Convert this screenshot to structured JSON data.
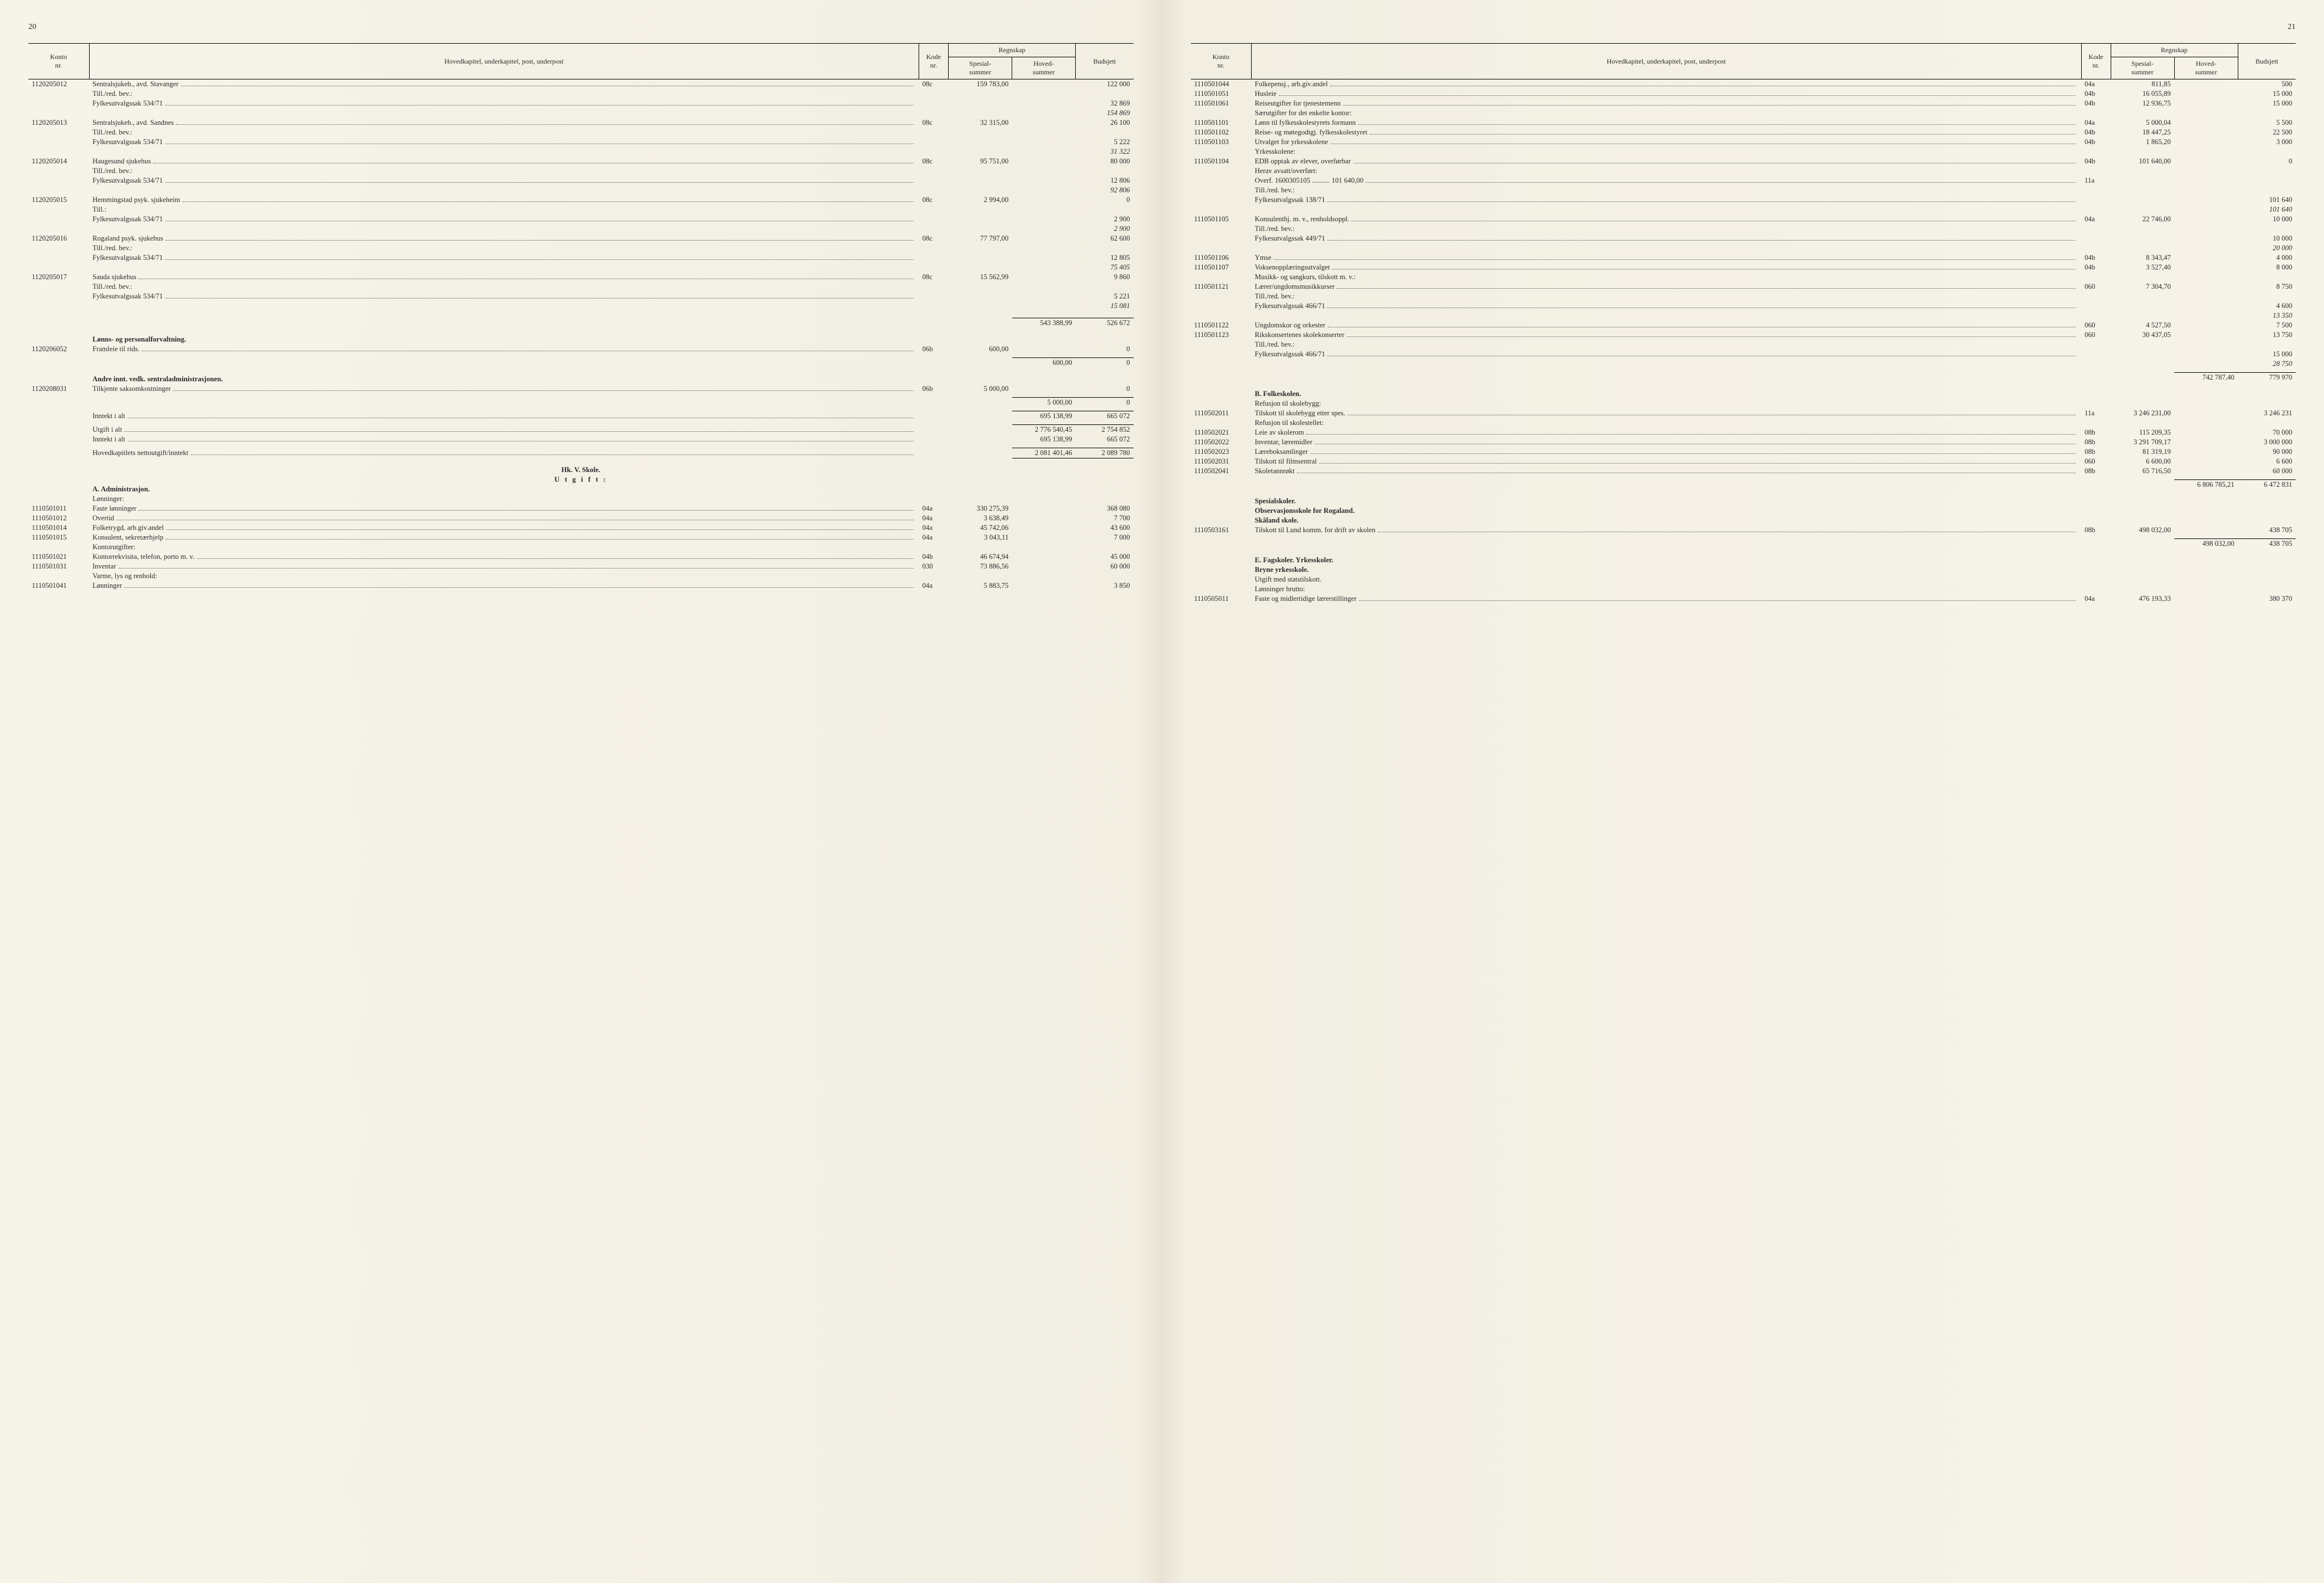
{
  "page_num_left": "20",
  "page_num_right": "21",
  "headers": {
    "konto": "Konto\nnr.",
    "hoved": "Hovedkapitel, underkapitel, post, underpost",
    "kode": "Kode\nnr.",
    "regnskap": "Regnskap",
    "spesial": "Spesial-\nsummer",
    "hovedsum": "Hoved-\nsummer",
    "budsjett": "Budsjett"
  },
  "left": [
    {
      "k": "1120205012",
      "d": "Sentralsjukeh., avd. Stavanger",
      "c": "08c",
      "s": "159 783,00",
      "b": "122 000"
    },
    {
      "k": "",
      "d": "Till./red. bev.:",
      "c": "",
      "s": "",
      "b": ""
    },
    {
      "k": "",
      "d": "Fylkesutvalgssak 534/71",
      "c": "",
      "s": "",
      "b": "32 869"
    },
    {
      "k": "",
      "d": "",
      "c": "",
      "s": "",
      "b": "154 869",
      "it": true
    },
    {
      "k": "1120205013",
      "d": "Sentralsjukeh., avd. Sandnes",
      "c": "08c",
      "s": "32 315,00",
      "b": "26 100"
    },
    {
      "k": "",
      "d": "Till./red. bev.:",
      "c": "",
      "s": "",
      "b": ""
    },
    {
      "k": "",
      "d": "Fylkesutvalgssak 534/71",
      "c": "",
      "s": "",
      "b": "5 222"
    },
    {
      "k": "",
      "d": "",
      "c": "",
      "s": "",
      "b": "31 322",
      "it": true
    },
    {
      "k": "1120205014",
      "d": "Haugesund sjukehus",
      "c": "08c",
      "s": "95 751,00",
      "b": "80 000"
    },
    {
      "k": "",
      "d": "Till./red. bev.:",
      "c": "",
      "s": "",
      "b": ""
    },
    {
      "k": "",
      "d": "Fylkesutvalgssak 534/71",
      "c": "",
      "s": "",
      "b": "12 806"
    },
    {
      "k": "",
      "d": "",
      "c": "",
      "s": "",
      "b": "92 806",
      "it": true
    },
    {
      "k": "1120205015",
      "d": "Hemmingstad psyk. sjukeheim",
      "c": "08c",
      "s": "2 994,00",
      "b": "0"
    },
    {
      "k": "",
      "d": "Till.:",
      "c": "",
      "s": "",
      "b": ""
    },
    {
      "k": "",
      "d": "Fylkesutvalgssak 534/71",
      "c": "",
      "s": "",
      "b": "2 900"
    },
    {
      "k": "",
      "d": "",
      "c": "",
      "s": "",
      "b": "2 900",
      "it": true
    },
    {
      "k": "1120205016",
      "d": "Rogaland psyk. sjukehus",
      "c": "08c",
      "s": "77 797,00",
      "b": "62 600"
    },
    {
      "k": "",
      "d": "Till./red. bev.:",
      "c": "",
      "s": "",
      "b": ""
    },
    {
      "k": "",
      "d": "Fylkesutvalgssak 534/71",
      "c": "",
      "s": "",
      "b": "12 805"
    },
    {
      "k": "",
      "d": "",
      "c": "",
      "s": "",
      "b": "75 405",
      "it": true
    },
    {
      "k": "1120205017",
      "d": "Sauda sjukehus",
      "c": "08c",
      "s": "15 562,99",
      "b": "9 860"
    },
    {
      "k": "",
      "d": "Till./red. bev.:",
      "c": "",
      "s": "",
      "b": ""
    },
    {
      "k": "",
      "d": "Fylkesutvalgssak 534/71",
      "c": "",
      "s": "",
      "b": "5 221"
    },
    {
      "k": "",
      "d": "",
      "c": "",
      "s": "",
      "b": "15 081",
      "it": true
    },
    {
      "type": "spacer"
    },
    {
      "k": "",
      "d": "",
      "c": "",
      "s": "",
      "h": "543 388,99",
      "b": "526 672",
      "rt": true
    },
    {
      "type": "spacer"
    },
    {
      "k": "",
      "d": "Lønns- og personalforvaltning.",
      "bold": true
    },
    {
      "k": "1120206052",
      "d": "Framleie til rids.",
      "c": "06b",
      "s": "600,00",
      "b": "0"
    },
    {
      "type": "spacer-sm"
    },
    {
      "k": "",
      "d": "",
      "c": "",
      "s": "",
      "h": "600,00",
      "b": "0",
      "rt": true
    },
    {
      "type": "spacer"
    },
    {
      "k": "",
      "d": "Andre innt. vedk. sentraladministrasjonen.",
      "bold": true
    },
    {
      "k": "1120208031",
      "d": "Tilkjente saksomkostninger",
      "c": "06b",
      "s": "5 000,00",
      "b": "0"
    },
    {
      "type": "spacer-sm"
    },
    {
      "k": "",
      "d": "",
      "c": "",
      "s": "",
      "h": "5 000,00",
      "b": "0",
      "rt": true
    },
    {
      "type": "spacer-sm"
    },
    {
      "k": "",
      "d": "Inntekt i alt",
      "c": "",
      "s": "",
      "h": "695 138,99",
      "b": "665 072",
      "rt": true
    },
    {
      "type": "spacer-sm"
    },
    {
      "k": "",
      "d": "Utgift i alt",
      "c": "",
      "s": "",
      "h": "2 776 540,45",
      "b": "2 754 852",
      "rt": true
    },
    {
      "k": "",
      "d": "Inntekt i alt",
      "c": "",
      "s": "",
      "h": "695 138,99",
      "b": "665 072"
    },
    {
      "type": "spacer-sm"
    },
    {
      "k": "",
      "d": "Hovedkapitlets nettoutgift/inntekt",
      "c": "",
      "s": "",
      "h": "2 081 401,46",
      "b": "2 089 780",
      "rt": true,
      "rb": true
    },
    {
      "type": "spacer"
    },
    {
      "type": "section",
      "text": "Hk. V. Skole."
    },
    {
      "type": "section",
      "text": "U t g i f t :",
      "spaced": true
    },
    {
      "k": "",
      "d": "A. Administrasjon.",
      "bold": true
    },
    {
      "k": "",
      "d": "Lønninger:"
    },
    {
      "k": "1110501011",
      "d": "Faste lønninger",
      "c": "04a",
      "s": "330 275,39",
      "b": "368 080"
    },
    {
      "k": "1110501012",
      "d": "Overtid",
      "c": "04a",
      "s": "3 638,49",
      "b": "7 700"
    },
    {
      "k": "1110501014",
      "d": "Folketrygd, arb.giv.andel",
      "c": "04a",
      "s": "45 742,06",
      "b": "43 600"
    },
    {
      "k": "1110501015",
      "d": "Konsulent, sekretærhjelp",
      "c": "04a",
      "s": "3 043,11",
      "b": "7 000"
    },
    {
      "k": "",
      "d": "Kontorutgifter:"
    },
    {
      "k": "1110501021",
      "d": "Kontorrekvisita, telefon, porto m. v.",
      "c": "04b",
      "s": "46 674,94",
      "b": "45 000"
    },
    {
      "k": "1110501031",
      "d": "Inventar",
      "c": "030",
      "s": "73 886,56",
      "b": "60 000"
    },
    {
      "k": "",
      "d": "Varme, lys og renhold:"
    },
    {
      "k": "1110501041",
      "d": "Lønninger",
      "c": "04a",
      "s": "5 883,75",
      "b": "3 850"
    }
  ],
  "right": [
    {
      "k": "1110501044",
      "d": "Folkepensj., arb.giv.andel",
      "c": "04a",
      "s": "811,85",
      "b": "500"
    },
    {
      "k": "1110501051",
      "d": "Husleie",
      "c": "04b",
      "s": "16 055,89",
      "b": "15 000"
    },
    {
      "k": "1110501061",
      "d": "Reiseutgifter for tjenestemenn",
      "c": "04b",
      "s": "12 936,75",
      "b": "15 000"
    },
    {
      "k": "",
      "d": "Særutgifter for det enkelte kontor:"
    },
    {
      "k": "1110501101",
      "d": "Lønn til fylkesskolestyrets formann",
      "c": "04a",
      "s": "5 000,04",
      "b": "5 500"
    },
    {
      "k": "1110501102",
      "d": "Reise- og møtegodtgj. fylkesskolestyret",
      "c": "04b",
      "s": "18 447,25",
      "b": "22 500"
    },
    {
      "k": "1110501103",
      "d": "Utvalget for yrkesskolene",
      "c": "04b",
      "s": "1 865,20",
      "b": "3 000"
    },
    {
      "k": "",
      "d": "Yrkesskolene:"
    },
    {
      "k": "1110501104",
      "d": "EDB opptak av elever, overførbar",
      "c": "04b",
      "s": "101 640,00",
      "b": "0"
    },
    {
      "k": "",
      "d": "Herav avsatt/overført:"
    },
    {
      "k": "",
      "d": "Overf. 1600305105 .......... 101 640,00",
      "c": "11a"
    },
    {
      "k": "",
      "d": "Till./red. bev.:"
    },
    {
      "k": "",
      "d": "Fylkesutvalgssak 138/71",
      "c": "",
      "s": "",
      "b": "101 640"
    },
    {
      "k": "",
      "d": "",
      "c": "",
      "s": "",
      "b": "101 640",
      "it": true
    },
    {
      "k": "1110501105",
      "d": "Konsulenthj. m. v., renholdsoppl.",
      "c": "04a",
      "s": "22 746,00",
      "b": "10 000"
    },
    {
      "k": "",
      "d": "Till./red. bev.:"
    },
    {
      "k": "",
      "d": "Fylkesutvalgssak 449/71",
      "c": "",
      "s": "",
      "b": "10 000"
    },
    {
      "k": "",
      "d": "",
      "c": "",
      "s": "",
      "b": "20 000",
      "it": true
    },
    {
      "k": "1110501106",
      "d": "Ymse",
      "c": "04b",
      "s": "8 343,47",
      "b": "4 000"
    },
    {
      "k": "1110501107",
      "d": "Voksenopplæringsutvalget",
      "c": "04b",
      "s": "3 527,40",
      "b": "8 000"
    },
    {
      "k": "",
      "d": "Musikk- og sangkurs, tilskott m. v.:"
    },
    {
      "k": "1110501121",
      "d": "Lærer/ungdomsmusikkurser",
      "c": "060",
      "s": "7 304,70",
      "b": "8 750"
    },
    {
      "k": "",
      "d": "Till./red. bev.:"
    },
    {
      "k": "",
      "d": "Fylkesutvalgssak 466/71",
      "c": "",
      "s": "",
      "b": "4 600"
    },
    {
      "k": "",
      "d": "",
      "c": "",
      "s": "",
      "b": "13 350",
      "it": true
    },
    {
      "k": "1110501122",
      "d": "Ungdomskor og orkester",
      "c": "060",
      "s": "4 527,50",
      "b": "7 500"
    },
    {
      "k": "1110501123",
      "d": "Rikskonsertenes skolekonserter",
      "c": "060",
      "s": "30 437,05",
      "b": "13 750"
    },
    {
      "k": "",
      "d": "Till./red. bev.:"
    },
    {
      "k": "",
      "d": "Fylkesutvalgssak 466/71",
      "c": "",
      "s": "",
      "b": "15 000"
    },
    {
      "k": "",
      "d": "",
      "c": "",
      "s": "",
      "b": "28 750",
      "it": true
    },
    {
      "type": "spacer-sm"
    },
    {
      "k": "",
      "d": "",
      "c": "",
      "s": "",
      "h": "742 787,40",
      "b": "779 970",
      "rt": true
    },
    {
      "type": "spacer"
    },
    {
      "k": "",
      "d": "B. Folkeskolen.",
      "bold": true
    },
    {
      "k": "",
      "d": "Refusjon til skolebygg:"
    },
    {
      "k": "1110502011",
      "d": "Tilskott til skolebygg etter spes.",
      "c": "11a",
      "s": "3 246 231,00",
      "b": "3 246 231"
    },
    {
      "k": "",
      "d": "Refusjon til skolestellet:"
    },
    {
      "k": "1110502021",
      "d": "Leie av skolerom",
      "c": "08b",
      "s": "115 209,35",
      "b": "70 000"
    },
    {
      "k": "1110502022",
      "d": "Inventar, læremidler",
      "c": "08b",
      "s": "3 291 709,17",
      "b": "3 000 000"
    },
    {
      "k": "1110502023",
      "d": "Læreboksamlinger",
      "c": "08b",
      "s": "81 319,19",
      "b": "90 000"
    },
    {
      "k": "1110502031",
      "d": "Tilskott til filmsentral",
      "c": "060",
      "s": "6 600,00",
      "b": "6 600"
    },
    {
      "k": "1110502041",
      "d": "Skoletannrøkt",
      "c": "08b",
      "s": "65 716,50",
      "b": "60 000"
    },
    {
      "type": "spacer-sm"
    },
    {
      "k": "",
      "d": "",
      "c": "",
      "s": "",
      "h": "6 806 785,21",
      "b": "6 472 831",
      "rt": true
    },
    {
      "type": "spacer"
    },
    {
      "k": "",
      "d": "Spesialskoler.",
      "bold": true
    },
    {
      "k": "",
      "d": "Observasjonsskole for Rogaland.",
      "bold": true
    },
    {
      "k": "",
      "d": "Skåland skole.",
      "bold": true
    },
    {
      "k": "1110503161",
      "d": "Tilskott til Lund komm. for drift av skolen",
      "c": "08b",
      "s": "498 032,00",
      "b": "438 705"
    },
    {
      "type": "spacer-sm"
    },
    {
      "k": "",
      "d": "",
      "c": "",
      "s": "",
      "h": "498 032,00",
      "b": "438 705",
      "rt": true
    },
    {
      "type": "spacer"
    },
    {
      "k": "",
      "d": "E. Fagskoler. Yrkesskoler.",
      "bold": true
    },
    {
      "k": "",
      "d": "Bryne yrkesskole.",
      "bold": true
    },
    {
      "k": "",
      "d": "Utgift med statstilskott."
    },
    {
      "k": "",
      "d": "Lønninger brutto:"
    },
    {
      "k": "1110505011",
      "d": "Faste og midlertidige lærerstillinger",
      "c": "04a",
      "s": "476 193,33",
      "b": "380 370"
    }
  ]
}
